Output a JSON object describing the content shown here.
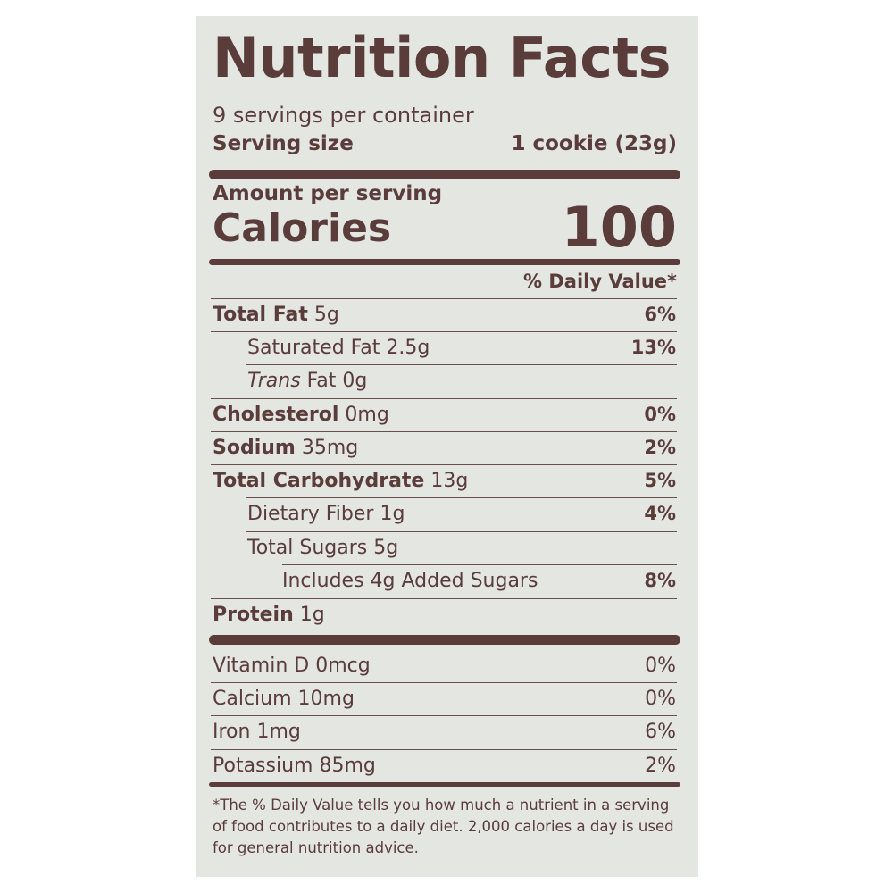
{
  "label": {
    "title": "Nutrition Facts",
    "servings_per_container": "9 servings per container",
    "serving_size_label": "Serving size",
    "serving_size_value": "1 cookie (23g)",
    "amount_per_serving": "Amount per serving",
    "calories_label": "Calories",
    "calories_value": "100",
    "daily_value_header": "% Daily Value*",
    "nutrients": [
      {
        "name": "Total Fat",
        "amount": "5g",
        "dv": "6%"
      },
      {
        "name": "Saturated Fat",
        "amount": "2.5g",
        "dv": "13%"
      },
      {
        "name": "Trans",
        "name_rest": "Fat",
        "amount": "0g",
        "dv": ""
      },
      {
        "name": "Cholesterol",
        "amount": "0mg",
        "dv": "0%"
      },
      {
        "name": "Sodium",
        "amount": "35mg",
        "dv": "2%"
      },
      {
        "name": "Total Carbohydrate",
        "amount": "13g",
        "dv": "5%"
      },
      {
        "name": "Dietary Fiber",
        "amount": "1g",
        "dv": "4%"
      },
      {
        "name": "Total Sugars",
        "amount": "5g",
        "dv": ""
      },
      {
        "name": "Includes 4g Added Sugars",
        "amount": "",
        "dv": "8%"
      },
      {
        "name": "Protein",
        "amount": "1g",
        "dv": ""
      }
    ],
    "vitamins": [
      {
        "text": "Vitamin D 0mcg",
        "dv": "0%"
      },
      {
        "text": "Calcium 10mg",
        "dv": "0%"
      },
      {
        "text": "Iron 1mg",
        "dv": "6%"
      },
      {
        "text": "Potassium 85mg",
        "dv": "2%"
      }
    ],
    "footnote": "*The % Daily Value tells you how much a nutrient in a serving of food contributes to a daily diet. 2,000 calories a day is used for general nutrition advice."
  },
  "colors": {
    "ink": "#5a3c3a",
    "panel": "#e4e6e1"
  }
}
